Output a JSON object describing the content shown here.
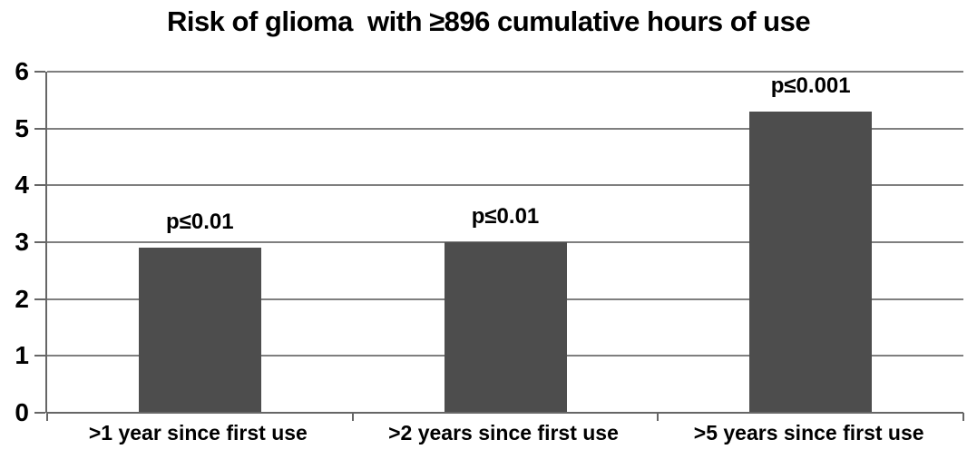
{
  "chart_data": {
    "type": "bar",
    "title": "Risk of glioma  with ≥896 cumulative hours of use",
    "categories": [
      ">1 year since first use",
      ">2 years since first use",
      ">5 years since first use"
    ],
    "values": [
      2.9,
      3.0,
      5.3
    ],
    "bar_labels": [
      "p≤0.01",
      "p≤0.01",
      "p≤0.001"
    ],
    "xlabel": "",
    "ylabel": "",
    "ylim": [
      0,
      6
    ],
    "yticks": [
      0,
      1,
      2,
      3,
      4,
      5,
      6
    ],
    "grid": "horizontal",
    "legend": "none",
    "colors": {
      "bar": "#4d4d4d",
      "gridline": "#7f7f7f",
      "axis": "#666666",
      "text": "#000000",
      "background": "#ffffff"
    }
  }
}
